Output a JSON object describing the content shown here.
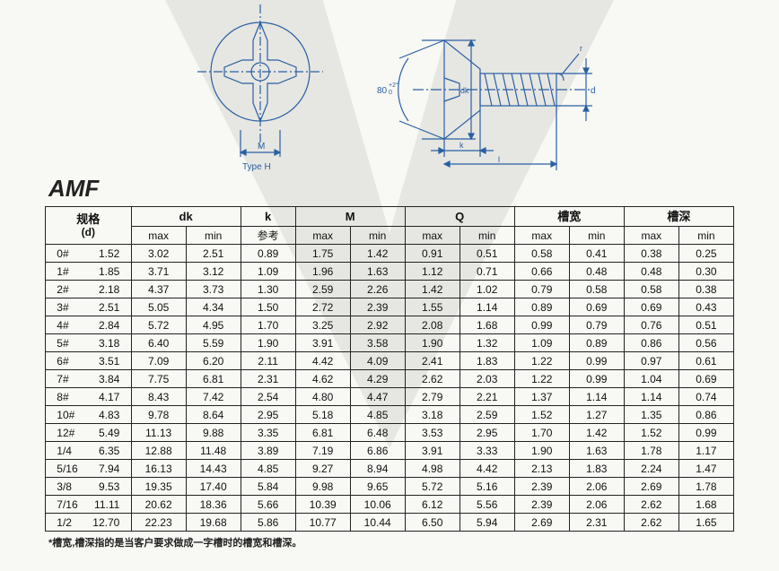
{
  "title": "AMF",
  "diagram": {
    "type": "engineering-drawing",
    "line_color": "#2a5fa3",
    "text_color": "#2a5fa3",
    "labels": {
      "type_h": "Type H",
      "m_dim": "M",
      "angle": "80",
      "angle_tol_top": "+2°",
      "angle_tol_bot": "0",
      "dk": "dk",
      "k": "k",
      "l": "l",
      "d": "d",
      "r": "r"
    }
  },
  "table": {
    "spec_header": "规格",
    "spec_sub": "(d)",
    "groups": [
      {
        "label": "dk",
        "subs": [
          "max",
          "min"
        ]
      },
      {
        "label": "k",
        "subs": [
          "参考"
        ]
      },
      {
        "label": "M",
        "subs": [
          "max",
          "min"
        ]
      },
      {
        "label": "Q",
        "subs": [
          "max",
          "min"
        ]
      },
      {
        "label": "槽宽",
        "subs": [
          "max",
          "min"
        ]
      },
      {
        "label": "槽深",
        "subs": [
          "max",
          "min"
        ]
      }
    ],
    "rows": [
      {
        "spec": [
          "0#",
          "1.52"
        ],
        "v": [
          "3.02",
          "2.51",
          "0.89",
          "1.75",
          "1.42",
          "0.91",
          "0.51",
          "0.58",
          "0.41",
          "0.38",
          "0.25"
        ]
      },
      {
        "spec": [
          "1#",
          "1.85"
        ],
        "v": [
          "3.71",
          "3.12",
          "1.09",
          "1.96",
          "1.63",
          "1.12",
          "0.71",
          "0.66",
          "0.48",
          "0.48",
          "0.30"
        ]
      },
      {
        "spec": [
          "2#",
          "2.18"
        ],
        "v": [
          "4.37",
          "3.73",
          "1.30",
          "2.59",
          "2.26",
          "1.42",
          "1.02",
          "0.79",
          "0.58",
          "0.58",
          "0.38"
        ]
      },
      {
        "spec": [
          "3#",
          "2.51"
        ],
        "v": [
          "5.05",
          "4.34",
          "1.50",
          "2.72",
          "2.39",
          "1.55",
          "1.14",
          "0.89",
          "0.69",
          "0.69",
          "0.43"
        ]
      },
      {
        "spec": [
          "4#",
          "2.84"
        ],
        "v": [
          "5.72",
          "4.95",
          "1.70",
          "3.25",
          "2.92",
          "2.08",
          "1.68",
          "0.99",
          "0.79",
          "0.76",
          "0.51"
        ]
      },
      {
        "spec": [
          "5#",
          "3.18"
        ],
        "v": [
          "6.40",
          "5.59",
          "1.90",
          "3.91",
          "3.58",
          "1.90",
          "1.32",
          "1.09",
          "0.89",
          "0.86",
          "0.56"
        ]
      },
      {
        "spec": [
          "6#",
          "3.51"
        ],
        "v": [
          "7.09",
          "6.20",
          "2.11",
          "4.42",
          "4.09",
          "2.41",
          "1.83",
          "1.22",
          "0.99",
          "0.97",
          "0.61"
        ]
      },
      {
        "spec": [
          "7#",
          "3.84"
        ],
        "v": [
          "7.75",
          "6.81",
          "2.31",
          "4.62",
          "4.29",
          "2.62",
          "2.03",
          "1.22",
          "0.99",
          "1.04",
          "0.69"
        ]
      },
      {
        "spec": [
          "8#",
          "4.17"
        ],
        "v": [
          "8.43",
          "7.42",
          "2.54",
          "4.80",
          "4.47",
          "2.79",
          "2.21",
          "1.37",
          "1.14",
          "1.14",
          "0.74"
        ]
      },
      {
        "spec": [
          "10#",
          "4.83"
        ],
        "v": [
          "9.78",
          "8.64",
          "2.95",
          "5.18",
          "4.85",
          "3.18",
          "2.59",
          "1.52",
          "1.27",
          "1.35",
          "0.86"
        ]
      },
      {
        "spec": [
          "12#",
          "5.49"
        ],
        "v": [
          "11.13",
          "9.88",
          "3.35",
          "6.81",
          "6.48",
          "3.53",
          "2.95",
          "1.70",
          "1.42",
          "1.52",
          "0.99"
        ]
      },
      {
        "spec": [
          "1/4",
          "6.35"
        ],
        "v": [
          "12.88",
          "11.48",
          "3.89",
          "7.19",
          "6.86",
          "3.91",
          "3.33",
          "1.90",
          "1.63",
          "1.78",
          "1.17"
        ]
      },
      {
        "spec": [
          "5/16",
          "7.94"
        ],
        "v": [
          "16.13",
          "14.43",
          "4.85",
          "9.27",
          "8.94",
          "4.98",
          "4.42",
          "2.13",
          "1.83",
          "2.24",
          "1.47"
        ]
      },
      {
        "spec": [
          "3/8",
          "9.53"
        ],
        "v": [
          "19.35",
          "17.40",
          "5.84",
          "9.98",
          "9.65",
          "5.72",
          "5.16",
          "2.39",
          "2.06",
          "2.69",
          "1.78"
        ]
      },
      {
        "spec": [
          "7/16",
          "11.11"
        ],
        "v": [
          "20.62",
          "18.36",
          "5.66",
          "10.39",
          "10.06",
          "6.12",
          "5.56",
          "2.39",
          "2.06",
          "2.62",
          "1.68"
        ]
      },
      {
        "spec": [
          "1/2",
          "12.70"
        ],
        "v": [
          "22.23",
          "19.68",
          "5.86",
          "10.77",
          "10.44",
          "6.50",
          "5.94",
          "2.69",
          "2.31",
          "2.62",
          "1.65"
        ]
      }
    ]
  },
  "footnote": "*槽宽,槽深指的是当客户要求做成一字槽时的槽宽和槽深。"
}
